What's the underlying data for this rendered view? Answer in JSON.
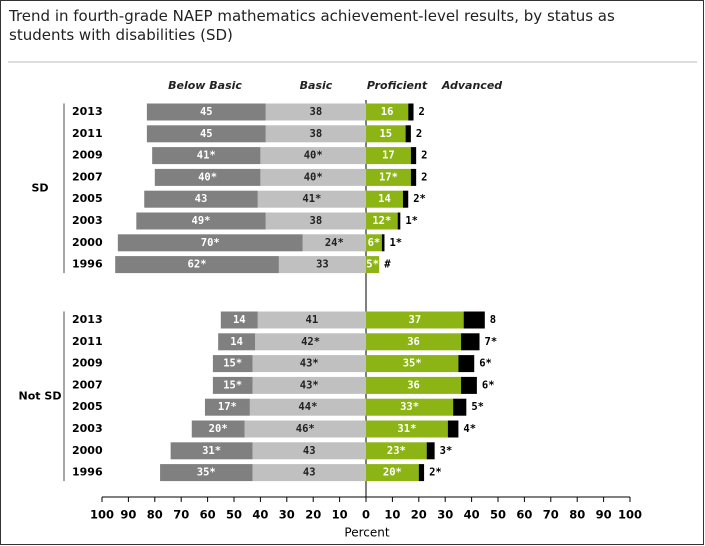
{
  "chart_data": {
    "type": "diverging_bar",
    "title": "Trend in fourth-grade NAEP mathematics achievement-level results, by status as students with disabilities (SD)",
    "xlabel": "Percent",
    "xlim": [
      -100,
      100
    ],
    "xticks": [
      {
        "value": -100,
        "label": "100"
      },
      {
        "value": -90,
        "label": "90"
      },
      {
        "value": -80,
        "label": "80"
      },
      {
        "value": -70,
        "label": "70"
      },
      {
        "value": -60,
        "label": "60"
      },
      {
        "value": -50,
        "label": "50"
      },
      {
        "value": -40,
        "label": "40"
      },
      {
        "value": -30,
        "label": "30"
      },
      {
        "value": -20,
        "label": "20"
      },
      {
        "value": -10,
        "label": "10"
      },
      0,
      10,
      20,
      30,
      40,
      50,
      60,
      70,
      80,
      90,
      100
    ],
    "groups": [
      {
        "name": "SD",
        "categories": [
          "2013",
          "2011",
          "2009",
          "2007",
          "2005",
          "2003",
          "2000",
          "1996"
        ]
      },
      {
        "name": "Not SD",
        "categories": [
          "2013",
          "2011",
          "2009",
          "2007",
          "2005",
          "2003",
          "2000",
          "1996"
        ]
      }
    ],
    "series": [
      {
        "name": "Below Basic",
        "color": "#808080",
        "side": "left",
        "label_color": "#ffffff",
        "label_position": "inside",
        "values": [
          [
            45,
            45,
            41,
            40,
            43,
            49,
            70,
            62
          ],
          [
            14,
            14,
            15,
            15,
            17,
            20,
            31,
            35
          ]
        ],
        "value_labels": [
          [
            "45",
            "45",
            "41*",
            "40*",
            "43",
            "49*",
            "70*",
            "62*"
          ],
          [
            "14",
            "14",
            "15*",
            "15*",
            "17*",
            "20*",
            "31*",
            "35*"
          ]
        ]
      },
      {
        "name": "Basic",
        "color": "#c0c0c0",
        "side": "left",
        "label_color": "#222222",
        "label_position": "inside",
        "values": [
          [
            38,
            38,
            40,
            40,
            41,
            38,
            24,
            33
          ],
          [
            41,
            42,
            43,
            43,
            44,
            46,
            43,
            43
          ]
        ],
        "value_labels": [
          [
            "38",
            "38",
            "40*",
            "40*",
            "41*",
            "38",
            "24*",
            "33"
          ],
          [
            "41",
            "42*",
            "43*",
            "43*",
            "44*",
            "46*",
            "43",
            "43"
          ]
        ]
      },
      {
        "name": "Proficient",
        "color": "#8cb414",
        "side": "right",
        "label_color": "#ffffff",
        "label_position": "inside",
        "values": [
          [
            16,
            15,
            17,
            17,
            14,
            12,
            6,
            5
          ],
          [
            37,
            36,
            35,
            36,
            33,
            31,
            23,
            20
          ]
        ],
        "value_labels": [
          [
            "16",
            "15",
            "17",
            "17*",
            "14",
            "12*",
            "6*",
            "5*"
          ],
          [
            "37",
            "36",
            "35*",
            "36",
            "33*",
            "31*",
            "23*",
            "20*"
          ]
        ]
      },
      {
        "name": "Advanced",
        "color": "#000000",
        "side": "right",
        "label_color": "#000000",
        "label_position": "outside",
        "values": [
          [
            2,
            2,
            2,
            2,
            2,
            1,
            1,
            0
          ],
          [
            8,
            7,
            6,
            6,
            5,
            4,
            3,
            2
          ]
        ],
        "value_labels": [
          [
            "2",
            "2",
            "2",
            "2",
            "2*",
            "1*",
            "1*",
            "#"
          ],
          [
            "8",
            "7*",
            "6*",
            "6*",
            "5*",
            "4*",
            "3*",
            "2*"
          ]
        ]
      }
    ]
  }
}
